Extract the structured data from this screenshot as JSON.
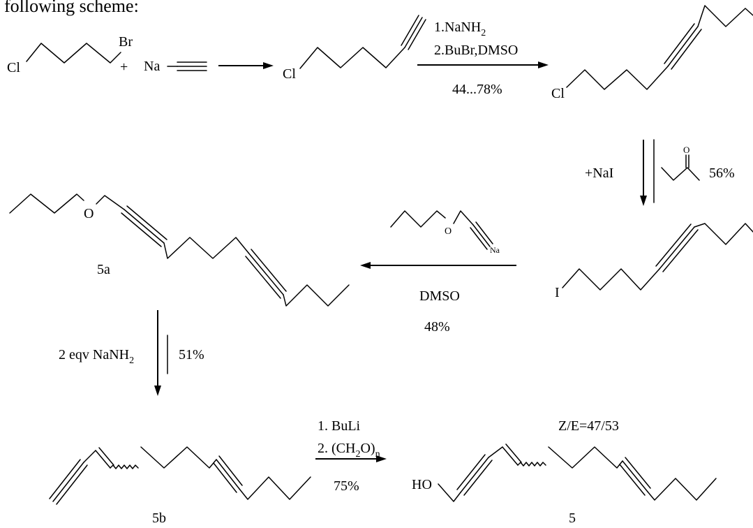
{
  "intro": "following scheme:",
  "atoms": {
    "cl": "Cl",
    "br": "Br",
    "plus": "+",
    "na": "Na",
    "o": "O",
    "i": "I",
    "ho": "HO",
    "ketone_o": "O"
  },
  "reagents": {
    "step2_line1_pre": "1.NaNH",
    "step2_line1_sub": "2",
    "step2_line2": "2.BuBr,DMSO",
    "step2_yield": "44...78%",
    "step3_reagent": "+NaI",
    "step3_yield": "56%",
    "step4_alkoxide_o": "O",
    "step4_alkoxide_na": "Na",
    "step4_solvent": "DMSO",
    "step4_yield": "48%",
    "step5_pre": "2 eqv NaNH",
    "step5_sub": "2",
    "step5_yield": "51%",
    "step6_line1": "1. BuLi",
    "step6_line2_pre": "2. (CH",
    "step6_line2_sub1": "2",
    "step6_line2_mid": "O)",
    "step6_line2_sub2": "n",
    "step6_yield": "75%"
  },
  "labels": {
    "c5a": "5a",
    "c5b": "5b",
    "c5": "5",
    "ratio": "Z/E=47/53"
  }
}
